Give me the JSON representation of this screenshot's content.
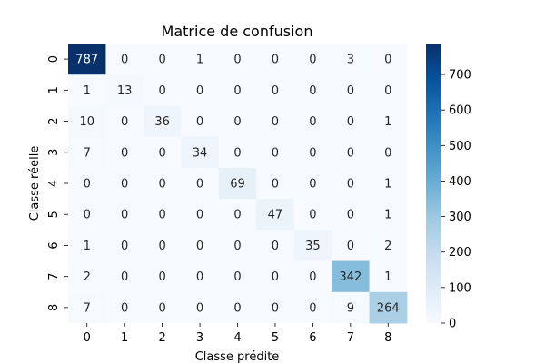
{
  "chart_data": {
    "type": "heatmap",
    "title": "Matrice de confusion",
    "xlabel": "Classe prédite",
    "ylabel": "Classe réelle",
    "x_categories": [
      "0",
      "1",
      "2",
      "3",
      "4",
      "5",
      "6",
      "7",
      "8"
    ],
    "y_categories": [
      "0",
      "1",
      "2",
      "3",
      "4",
      "5",
      "6",
      "7",
      "8"
    ],
    "values": [
      [
        787,
        0,
        0,
        1,
        0,
        0,
        0,
        3,
        0
      ],
      [
        1,
        13,
        0,
        0,
        0,
        0,
        0,
        0,
        0
      ],
      [
        10,
        0,
        36,
        0,
        0,
        0,
        0,
        0,
        1
      ],
      [
        7,
        0,
        0,
        34,
        0,
        0,
        0,
        0,
        0
      ],
      [
        0,
        0,
        0,
        0,
        69,
        0,
        0,
        0,
        1
      ],
      [
        0,
        0,
        0,
        0,
        0,
        47,
        0,
        0,
        1
      ],
      [
        1,
        0,
        0,
        0,
        0,
        0,
        35,
        0,
        2
      ],
      [
        2,
        0,
        0,
        0,
        0,
        0,
        0,
        342,
        1
      ],
      [
        7,
        0,
        0,
        0,
        0,
        0,
        0,
        9,
        264
      ]
    ],
    "colormap": "Blues",
    "colorbar": {
      "range": [
        0,
        787
      ],
      "ticks": [
        0,
        100,
        200,
        300,
        400,
        500,
        600,
        700
      ],
      "tick_labels": [
        "0",
        "100",
        "200",
        "300",
        "400",
        "500",
        "600",
        "700"
      ]
    },
    "grid": false,
    "legend": "colorbar-right"
  }
}
